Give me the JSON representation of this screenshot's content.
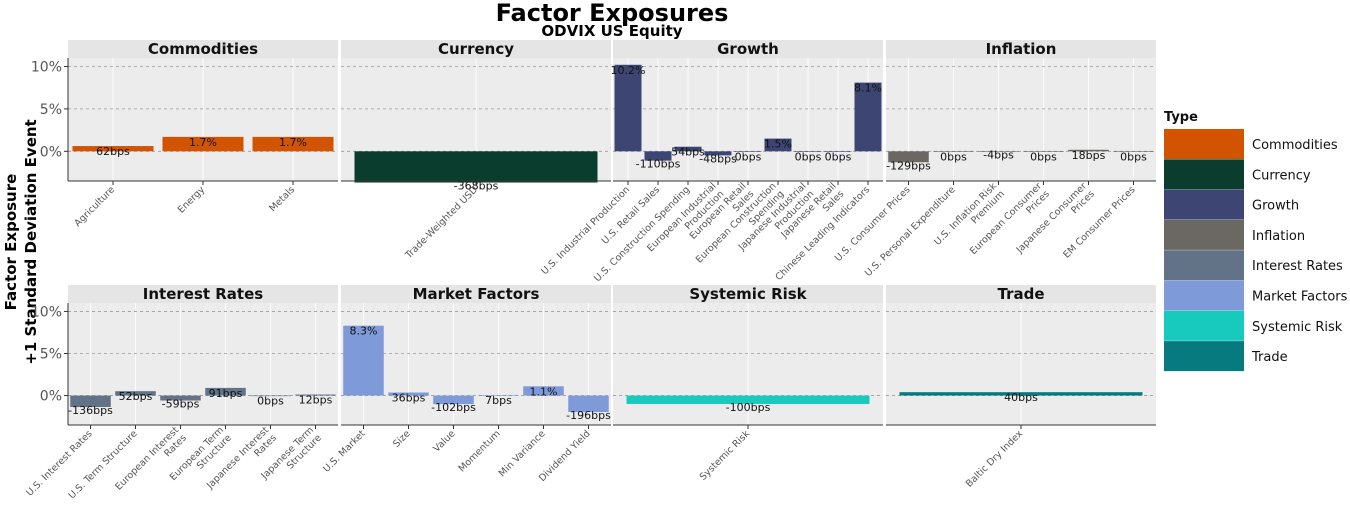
{
  "chart_data": {
    "type": "bar",
    "title": "Factor Exposures",
    "subtitle": "ODVIX US Equity",
    "ylabel_line1": "Factor Exposure",
    "ylabel_line2": "+1 Standard Deviation Event",
    "ylim": [
      -3.5,
      11
    ],
    "yticks": [
      0,
      5,
      10
    ],
    "ytick_labels": [
      "0%",
      "5%",
      "10%"
    ],
    "legend": {
      "title": "Type",
      "entries": [
        {
          "name": "Commodities",
          "color": "#d35400"
        },
        {
          "name": "Currency",
          "color": "#0b3d2e"
        },
        {
          "name": "Growth",
          "color": "#3d4673"
        },
        {
          "name": "Inflation",
          "color": "#6b6762"
        },
        {
          "name": "Interest Rates",
          "color": "#627287"
        },
        {
          "name": "Market Factors",
          "color": "#7f9ad8"
        },
        {
          "name": "Systemic Risk",
          "color": "#17cabd"
        },
        {
          "name": "Trade",
          "color": "#077a80"
        }
      ]
    },
    "panels": [
      {
        "name": "Commodities",
        "color": "#d35400",
        "categories": [
          {
            "label": [
              "Agriculture"
            ],
            "value": 0.62,
            "text": "62bps"
          },
          {
            "label": [
              "Energy"
            ],
            "value": 1.7,
            "text": "1.7%"
          },
          {
            "label": [
              "Metals"
            ],
            "value": 1.7,
            "text": "1.7%"
          }
        ]
      },
      {
        "name": "Currency",
        "color": "#0b3d2e",
        "categories": [
          {
            "label": [
              "Trade-Weighted USD"
            ],
            "value": -3.68,
            "text": "-368bps"
          }
        ]
      },
      {
        "name": "Growth",
        "color": "#3d4673",
        "categories": [
          {
            "label": [
              "U.S. Industrial Production"
            ],
            "value": 10.2,
            "text": "10.2%"
          },
          {
            "label": [
              "U.S. Retail Sales"
            ],
            "value": -1.1,
            "text": "-110bps"
          },
          {
            "label": [
              "U.S. Construction Spending"
            ],
            "value": 0.54,
            "text": "54bps"
          },
          {
            "label": [
              "European Industrial",
              "Production"
            ],
            "value": -0.48,
            "text": "-48bps"
          },
          {
            "label": [
              "European Retail",
              "Sales"
            ],
            "value": 0,
            "text": "0bps"
          },
          {
            "label": [
              "European Construction",
              "Spending"
            ],
            "value": 1.5,
            "text": "1.5%"
          },
          {
            "label": [
              "Japanese Industrial",
              "Production"
            ],
            "value": 0,
            "text": "0bps"
          },
          {
            "label": [
              "Japanese Retail",
              "Sales"
            ],
            "value": 0,
            "text": "0bps"
          },
          {
            "label": [
              "Chinese Leading Indicators"
            ],
            "value": 8.1,
            "text": "8.1%"
          }
        ]
      },
      {
        "name": "Inflation",
        "color": "#6b6762",
        "categories": [
          {
            "label": [
              "U.S. Consumer Prices"
            ],
            "value": -1.29,
            "text": "-129bps"
          },
          {
            "label": [
              "U.S. Personal Expenditure"
            ],
            "value": 0,
            "text": "0bps"
          },
          {
            "label": [
              "U.S. Inflation Risk",
              "Premium"
            ],
            "value": -0.04,
            "text": "-4bps"
          },
          {
            "label": [
              "European Consumer",
              "Prices"
            ],
            "value": 0,
            "text": "0bps"
          },
          {
            "label": [
              "Japanese Consumer",
              "Prices"
            ],
            "value": 0.18,
            "text": "18bps"
          },
          {
            "label": [
              "EM Consumer Prices"
            ],
            "value": 0,
            "text": "0bps"
          }
        ]
      },
      {
        "name": "Interest Rates",
        "color": "#627287",
        "categories": [
          {
            "label": [
              "U.S. Interest Rates"
            ],
            "value": -1.36,
            "text": "-136bps"
          },
          {
            "label": [
              "U.S. Term Structure"
            ],
            "value": 0.52,
            "text": "52bps"
          },
          {
            "label": [
              "European Interest",
              "Rates"
            ],
            "value": -0.59,
            "text": "-59bps"
          },
          {
            "label": [
              "European Term",
              "Structure"
            ],
            "value": 0.91,
            "text": "91bps"
          },
          {
            "label": [
              "Japanese Interest",
              "Rates"
            ],
            "value": 0,
            "text": "0bps"
          },
          {
            "label": [
              "Japanese Term",
              "Structure"
            ],
            "value": 0.12,
            "text": "12bps"
          }
        ]
      },
      {
        "name": "Market Factors",
        "color": "#7f9ad8",
        "categories": [
          {
            "label": [
              "U.S. Market"
            ],
            "value": 8.3,
            "text": "8.3%"
          },
          {
            "label": [
              "Size"
            ],
            "value": 0.36,
            "text": "36bps"
          },
          {
            "label": [
              "Value"
            ],
            "value": -1.02,
            "text": "-102bps"
          },
          {
            "label": [
              "Momentum"
            ],
            "value": 0.07,
            "text": "7bps"
          },
          {
            "label": [
              "Min Variance"
            ],
            "value": 1.1,
            "text": "1.1%"
          },
          {
            "label": [
              "Dividend Yield"
            ],
            "value": -1.96,
            "text": "-196bps"
          }
        ]
      },
      {
        "name": "Systemic Risk",
        "color": "#17cabd",
        "categories": [
          {
            "label": [
              "Systemic Risk"
            ],
            "value": -1.0,
            "text": "-100bps"
          }
        ]
      },
      {
        "name": "Trade",
        "color": "#077a80",
        "categories": [
          {
            "label": [
              "Baltic Dry Index"
            ],
            "value": 0.4,
            "text": "40bps"
          }
        ]
      }
    ]
  }
}
